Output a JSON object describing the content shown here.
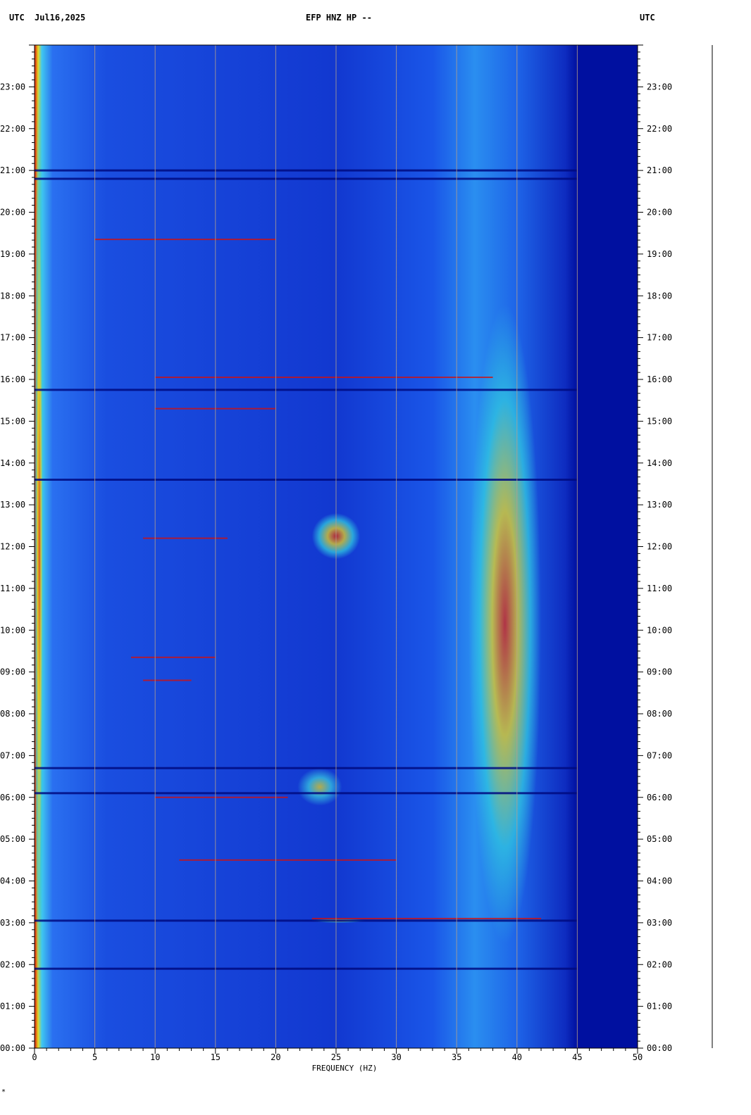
{
  "header": {
    "left_tz": "UTC",
    "date": "Jul16,2025",
    "station": "EFP HNZ HP --",
    "right_tz": "UTC"
  },
  "footer_mark": "*",
  "chart_data": {
    "type": "heatmap",
    "title": "EFP HNZ HP --",
    "xlabel": "FREQUENCY (HZ)",
    "ylabel": "UTC",
    "xlim": [
      0,
      50
    ],
    "ylim": [
      0,
      24
    ],
    "x_ticks": [
      0,
      5,
      10,
      15,
      20,
      25,
      30,
      35,
      40,
      45,
      50
    ],
    "y_tick_labels": [
      "00:00",
      "01:00",
      "02:00",
      "03:00",
      "04:00",
      "05:00",
      "06:00",
      "07:00",
      "08:00",
      "09:00",
      "10:00",
      "11:00",
      "12:00",
      "13:00",
      "14:00",
      "15:00",
      "16:00",
      "17:00",
      "18:00",
      "19:00",
      "20:00",
      "21:00",
      "22:00",
      "23:00"
    ],
    "grid": true,
    "colors": {
      "background_low": "#0010a0",
      "mid": "#1c5cf0",
      "high_cyan": "#20c8e8",
      "yellow": "#e8e020",
      "red": "#d01010",
      "dark_band": "#000a80",
      "grid": "#b4a08c"
    },
    "energy_regions": [
      {
        "name": "low-frequency edge",
        "freq": [
          0,
          0.8
        ],
        "time": [
          0,
          24
        ],
        "level": "high"
      },
      {
        "name": "broad band",
        "freq": [
          36,
          42
        ],
        "time": [
          2.5,
          17.8
        ],
        "level": "high"
      },
      {
        "name": "cluster 1",
        "freq": [
          23,
          27
        ],
        "time": [
          11.7,
          12.8
        ],
        "level": "high"
      },
      {
        "name": "cluster 2",
        "freq": [
          21.8,
          25.5
        ],
        "time": [
          5.8,
          6.7
        ],
        "level": "medium"
      },
      {
        "name": "tremor",
        "freq": [
          23,
          27.5
        ],
        "time": [
          3.0,
          3.1
        ],
        "level": "high"
      },
      {
        "name": "cutoff",
        "freq": [
          45,
          50
        ],
        "time": [
          0,
          24
        ],
        "level": "none"
      }
    ],
    "dark_lines_time": [
      21.0,
      20.8,
      15.75,
      13.6,
      6.7,
      6.1,
      1.9,
      3.05
    ],
    "bright_lines": [
      {
        "time": 19.35,
        "freq": [
          5,
          20
        ]
      },
      {
        "time": 16.05,
        "freq": [
          10,
          38
        ]
      },
      {
        "time": 15.3,
        "freq": [
          10,
          20
        ]
      },
      {
        "time": 12.2,
        "freq": [
          9,
          16
        ]
      },
      {
        "time": 9.35,
        "freq": [
          8,
          15
        ]
      },
      {
        "time": 8.8,
        "freq": [
          9,
          13
        ]
      },
      {
        "time": 6.0,
        "freq": [
          10,
          21
        ]
      },
      {
        "time": 4.5,
        "freq": [
          12,
          30
        ]
      },
      {
        "time": 3.1,
        "freq": [
          23,
          42
        ]
      }
    ]
  }
}
